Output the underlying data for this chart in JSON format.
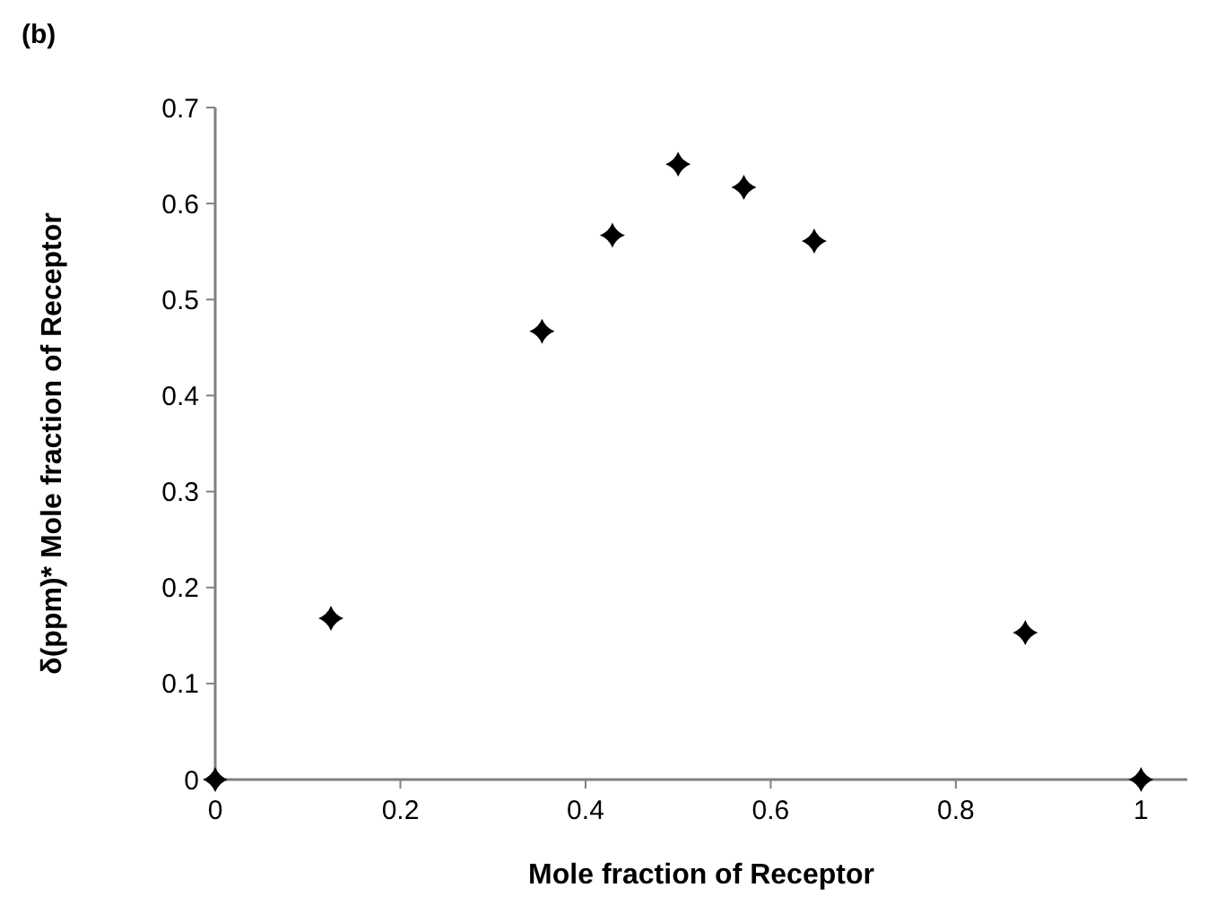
{
  "chart_data": {
    "type": "scatter",
    "xlabel": "Mole fraction of Receptor",
    "ylabel": "δ(ppm)* Mole fraction of Receptor",
    "annotations": [
      "(b)"
    ],
    "x": [
      0,
      0.125,
      0.353,
      0.429,
      0.5,
      0.571,
      0.647,
      0.875,
      1
    ],
    "series": [
      {
        "color": "#000000",
        "values": [
          0,
          0.168,
          0.467,
          0.567,
          0.641,
          0.617,
          0.561,
          0.153,
          0
        ]
      }
    ],
    "xlim": [
      0,
      1.05
    ],
    "xticks": [
      0,
      0.2,
      0.4,
      0.6,
      0.8,
      1
    ],
    "ylim": [
      0,
      0.7
    ],
    "yticks": [
      0,
      0.1,
      0.2,
      0.3,
      0.4,
      0.5,
      0.6,
      0.7
    ],
    "marker": "star",
    "grid": false
  }
}
